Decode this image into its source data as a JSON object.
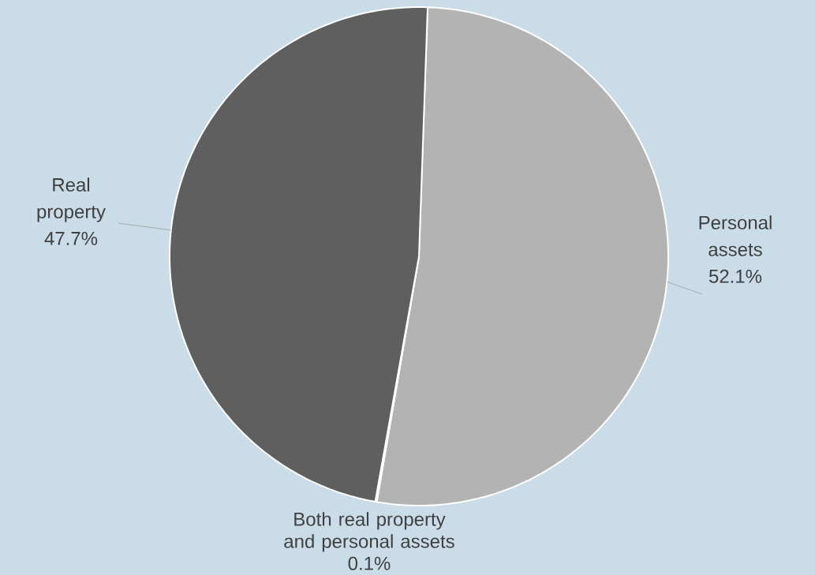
{
  "chart_data": {
    "type": "pie",
    "categories": [
      "Personal assets",
      "Both real property and personal assets",
      "Real property"
    ],
    "values": [
      52.1,
      0.1,
      47.7
    ],
    "colors": [
      "#b3b3b3",
      "#8a8a8a",
      "#5f5f5f"
    ],
    "value_labels": [
      "52.1%",
      "0.1%",
      "47.7%"
    ],
    "legend": false
  }
}
